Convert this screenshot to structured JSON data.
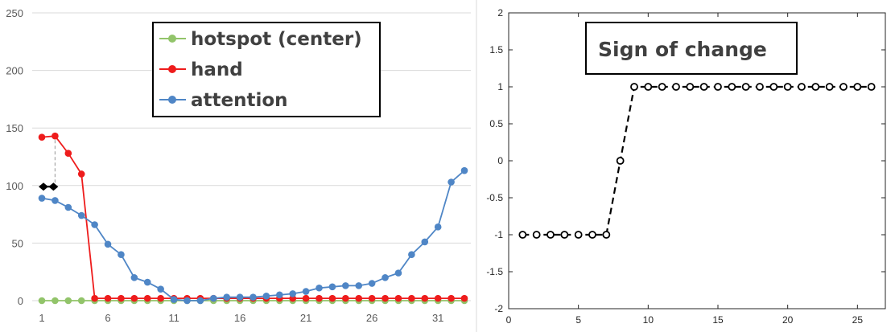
{
  "chart_data": [
    {
      "type": "line",
      "x": [
        1,
        2,
        3,
        4,
        5,
        6,
        7,
        8,
        9,
        10,
        11,
        12,
        13,
        14,
        15,
        16,
        17,
        18,
        19,
        20,
        21,
        22,
        23,
        24,
        25,
        26,
        27,
        28,
        29,
        30,
        31,
        32,
        33
      ],
      "xticks": [
        "1",
        "6",
        "11",
        "16",
        "21",
        "26",
        "31"
      ],
      "yticks": [
        "0",
        "50",
        "100",
        "150",
        "200",
        "250"
      ],
      "ylim": [
        0,
        250
      ],
      "grid": true,
      "legend_position": "top-center",
      "series": [
        {
          "name": "hotspot (center)",
          "color": "#92c46a",
          "values": [
            0,
            0,
            0,
            0,
            0,
            0,
            0,
            0,
            0,
            0,
            0,
            0,
            0,
            0,
            0,
            0,
            0,
            0,
            0,
            0,
            0,
            0,
            0,
            0,
            0,
            0,
            0,
            0,
            0,
            0,
            0,
            0,
            0
          ]
        },
        {
          "name": "hand",
          "color": "#ee1c1c",
          "values": [
            142,
            143,
            128,
            110,
            2,
            2,
            2,
            2,
            2,
            2,
            2,
            2,
            2,
            2,
            2,
            2,
            2,
            2,
            2,
            2,
            2,
            2,
            2,
            2,
            2,
            2,
            2,
            2,
            2,
            2,
            2,
            2,
            2
          ]
        },
        {
          "name": "attention",
          "color": "#4f86c6",
          "values": [
            89,
            87,
            81,
            74,
            66,
            49,
            40,
            20,
            16,
            10,
            1,
            0,
            0,
            2,
            3,
            3,
            3,
            4,
            5,
            6,
            8,
            11,
            12,
            13,
            13,
            15,
            20,
            24,
            40,
            51,
            64,
            103,
            113
          ]
        }
      ],
      "annotation": {
        "type": "double-arrow",
        "x": [
          1,
          2
        ],
        "y": 99,
        "color": "#000000"
      },
      "dashed_marker": {
        "x": 2,
        "y_from": 99,
        "y_to": 143,
        "color": "#a6a6a6"
      }
    },
    {
      "type": "line",
      "title": "Sign of change",
      "x": [
        1,
        2,
        3,
        4,
        5,
        6,
        7,
        8,
        9,
        10,
        11,
        12,
        13,
        14,
        15,
        16,
        17,
        18,
        19,
        20,
        21,
        22,
        23,
        24,
        25,
        26
      ],
      "values": [
        -1,
        -1,
        -1,
        -1,
        -1,
        -1,
        -1,
        0,
        1,
        1,
        1,
        1,
        1,
        1,
        1,
        1,
        1,
        1,
        1,
        1,
        1,
        1,
        1,
        1,
        1,
        1
      ],
      "xlim": [
        0,
        27
      ],
      "ylim": [
        -2,
        2
      ],
      "xticks": [
        "0",
        "5",
        "10",
        "15",
        "20",
        "25"
      ],
      "yticks": [
        "-2",
        "-1.5",
        "-1",
        "-0.5",
        "0",
        "0.5",
        "1",
        "1.5",
        "2"
      ],
      "marker": "open-circle",
      "line_style": "dashed",
      "color": "#000000",
      "grid": false
    }
  ]
}
